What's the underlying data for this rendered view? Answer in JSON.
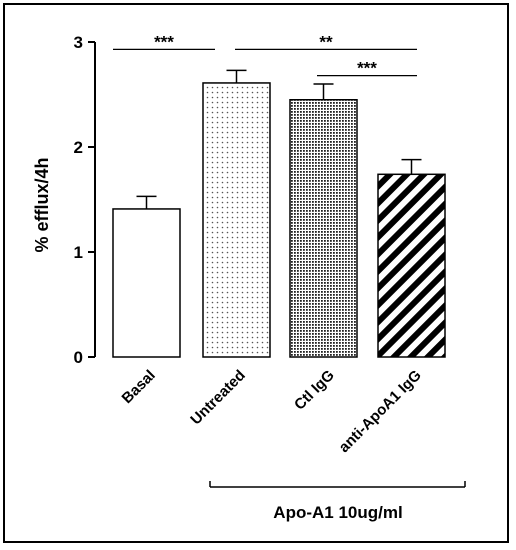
{
  "chart_data": {
    "type": "bar",
    "ylabel": "% efflux/4h",
    "ylim": [
      0,
      3
    ],
    "yticks": [
      0,
      1,
      2,
      3
    ],
    "categories": [
      "Basal",
      "Untreated",
      "Ctl IgG",
      "anti-ApoA1 IgG"
    ],
    "values": [
      1.41,
      2.61,
      2.45,
      1.74
    ],
    "errors": [
      0.12,
      0.12,
      0.15,
      0.14
    ],
    "patterns": [
      "none",
      "dots",
      "dense-dots",
      "diagonal-stripes"
    ],
    "significance": [
      {
        "from": 0,
        "to": 1,
        "label": "***",
        "y": 2.93
      },
      {
        "from": 1,
        "to": 3,
        "label": "**",
        "y": 2.93
      },
      {
        "from": 2,
        "to": 3,
        "label": "***",
        "y": 2.68
      }
    ],
    "group_bracket": {
      "from": 1,
      "to": 3,
      "label": "Apo-A1 10ug/ml"
    }
  }
}
